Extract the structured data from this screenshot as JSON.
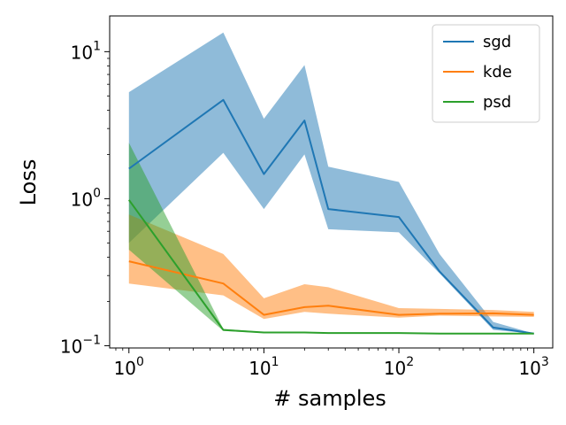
{
  "chart_data": {
    "type": "line",
    "xscale": "log",
    "yscale": "log",
    "xlabel": "# samples",
    "ylabel": "Loss",
    "xlim": [
      0.72,
      1380
    ],
    "ylim": [
      0.0965,
      17.5
    ],
    "x_ticks": [
      {
        "value": 1,
        "base": "10",
        "exp": "0"
      },
      {
        "value": 10,
        "base": "10",
        "exp": "1"
      },
      {
        "value": 100,
        "base": "10",
        "exp": "2"
      },
      {
        "value": 1000,
        "base": "10",
        "exp": "3"
      }
    ],
    "y_ticks": [
      {
        "value": 0.1,
        "base": "10",
        "exp": "−1"
      },
      {
        "value": 1,
        "base": "10",
        "exp": "0"
      },
      {
        "value": 10,
        "base": "10",
        "exp": "1"
      }
    ],
    "legend": {
      "position": "top-right",
      "entries": [
        "sgd",
        "kde",
        "psd"
      ]
    },
    "series": [
      {
        "name": "sgd",
        "color": "#1f77b4",
        "x": [
          1,
          5,
          10,
          20,
          30,
          100,
          200,
          500,
          1000
        ],
        "mean": [
          1.6,
          4.7,
          1.47,
          3.4,
          0.85,
          0.75,
          0.32,
          0.133,
          0.121
        ],
        "lower": [
          0.5,
          2.05,
          0.85,
          2.0,
          0.62,
          0.59,
          0.31,
          0.128,
          0.121
        ],
        "upper": [
          5.3,
          13.5,
          3.5,
          8.1,
          1.65,
          1.3,
          0.42,
          0.145,
          0.121
        ]
      },
      {
        "name": "kde",
        "color": "#ff7f0e",
        "x": [
          1,
          5,
          10,
          20,
          30,
          100,
          200,
          500,
          1000
        ],
        "mean": [
          0.375,
          0.265,
          0.162,
          0.183,
          0.187,
          0.162,
          0.165,
          0.166,
          0.162
        ],
        "lower": [
          0.265,
          0.22,
          0.152,
          0.17,
          0.165,
          0.155,
          0.16,
          0.158,
          0.157
        ],
        "upper": [
          0.78,
          0.42,
          0.21,
          0.262,
          0.25,
          0.18,
          0.178,
          0.175,
          0.17
        ]
      },
      {
        "name": "psd",
        "color": "#2ca02c",
        "x": [
          1,
          5,
          10,
          20,
          30,
          100,
          200,
          500,
          1000
        ],
        "mean": [
          0.98,
          0.128,
          0.123,
          0.123,
          0.122,
          0.122,
          0.121,
          0.121,
          0.121
        ],
        "lower": [
          0.45,
          0.126,
          0.122,
          0.122,
          0.122,
          0.121,
          0.121,
          0.121,
          0.121
        ],
        "upper": [
          2.4,
          0.13,
          0.124,
          0.124,
          0.123,
          0.122,
          0.122,
          0.121,
          0.121
        ]
      }
    ]
  }
}
